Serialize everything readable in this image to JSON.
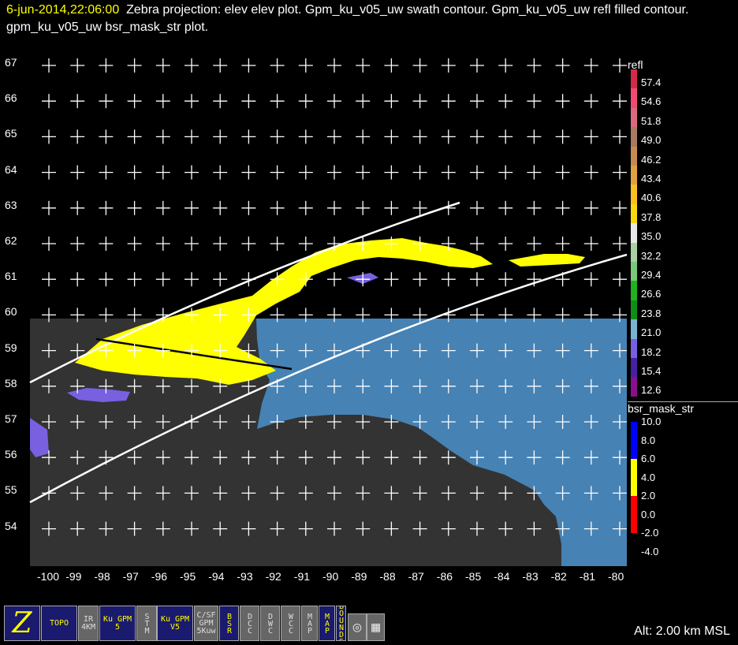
{
  "title": {
    "timestamp": "6-jun-2014,22:06:00",
    "text": "Zebra projection: elev elev  plot.  Gpm_ku_v05_uw swath contour.  Gpm_ku_v05_uw refl filled contour.  gpm_ku_v05_uw bsr_mask_str  plot."
  },
  "map": {
    "lat_labels": [
      "67",
      "66",
      "65",
      "64",
      "63",
      "62",
      "61",
      "60",
      "59",
      "58",
      "57",
      "56",
      "55",
      "54"
    ],
    "lon_labels": [
      "-100",
      "-99",
      "-98",
      "-97",
      "-96",
      "-95",
      "-94",
      "-93",
      "-92",
      "-91",
      "-90",
      "-89",
      "-88",
      "-87",
      "-86",
      "-85",
      "-84",
      "-83",
      "-82",
      "-81",
      "-80"
    ],
    "colors": {
      "land": "#333333",
      "ocean": "#4682b4",
      "swath": "#ffffff",
      "refl_fill": "#ffff00",
      "grid": "#ffffff"
    }
  },
  "legend_refl": {
    "title": "refl",
    "values": [
      "57.4",
      "54.6",
      "51.8",
      "49.0",
      "46.2",
      "43.4",
      "40.6",
      "37.8",
      "35.0",
      "32.2",
      "29.4",
      "26.6",
      "23.8",
      "21.0",
      "18.2",
      "15.4",
      "12.6"
    ],
    "colors": [
      "#d22a48",
      "#f04a72",
      "#dc6880",
      "#a87860",
      "#c48a50",
      "#e0a040",
      "#f8c020",
      "#f8d810",
      "#e8e8e8",
      "#a8d0a0",
      "#78c878",
      "#20b020",
      "#108c18",
      "#78b4d0",
      "#7860e0",
      "#4820a0",
      "#88108c"
    ]
  },
  "legend_bsr": {
    "title": "bsr_mask_str",
    "values": [
      "10.0",
      "8.0",
      "6.0",
      "4.0",
      "2.0",
      "0.0",
      "-2.0",
      "-4.0"
    ],
    "colors": [
      "#0000ff",
      "#ffff00",
      "#ff0000"
    ]
  },
  "toolbar": [
    {
      "label": "Z",
      "state": "on"
    },
    {
      "label": "TOPO",
      "state": "on"
    },
    {
      "label": "IR 4KM",
      "state": "off"
    },
    {
      "label": "Ku GPM 5",
      "state": "on"
    },
    {
      "label": "STM",
      "state": "off"
    },
    {
      "label": "Ku GPM V5",
      "state": "on"
    },
    {
      "label": "C/SF GPM 5Kuw",
      "state": "off"
    },
    {
      "label": "BSR",
      "state": "on"
    },
    {
      "label": "DCC",
      "state": "off"
    },
    {
      "label": "DWC",
      "state": "off"
    },
    {
      "label": "WCC",
      "state": "off"
    },
    {
      "label": "MAP",
      "state": "off"
    },
    {
      "label": "MAP",
      "state": "on"
    },
    {
      "label": "BOUNDS",
      "state": "on"
    },
    {
      "label": "◎",
      "state": "off"
    },
    {
      "label": "▦",
      "state": "off"
    }
  ],
  "altitude": "Alt: 2.00 km MSL"
}
